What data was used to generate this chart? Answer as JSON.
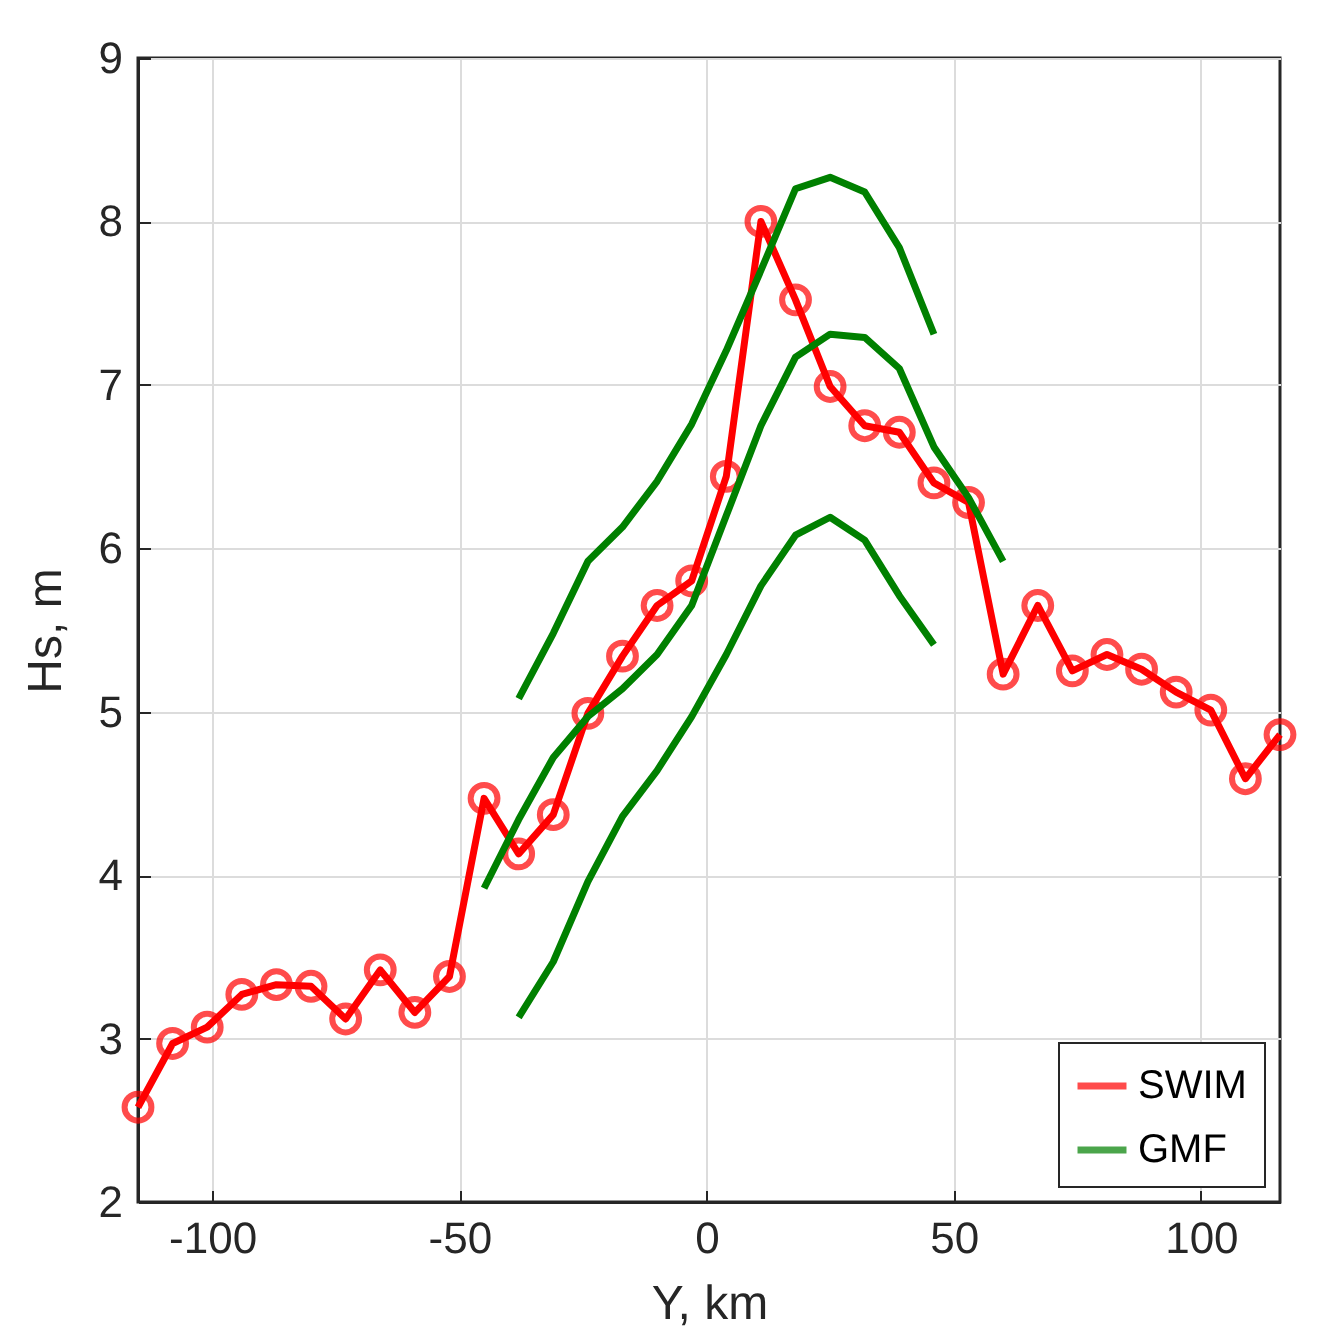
{
  "chart_data": {
    "type": "line",
    "xlabel": "Y, km",
    "ylabel": "Hs, m",
    "xlim": [
      -115,
      116
    ],
    "ylim": [
      2,
      9
    ],
    "xticks": [
      -100,
      -50,
      0,
      50,
      100
    ],
    "yticks": [
      2,
      3,
      4,
      5,
      6,
      7,
      8,
      9
    ],
    "grid": true,
    "legend": "bottom right",
    "line_style": "solid",
    "series": [
      {
        "name": "SWIM",
        "color": "#ff0000",
        "marker": "circle",
        "x": [
          -115,
          -108,
          -101,
          -94,
          -87,
          -80,
          -73,
          -66,
          -59,
          -52,
          -45,
          -38,
          -31,
          -24,
          -17,
          -10,
          -3,
          4,
          11,
          18,
          25,
          32,
          39,
          46,
          53,
          60,
          67,
          74,
          81,
          88,
          95,
          102,
          109,
          116
        ],
        "values": [
          2.58,
          2.97,
          3.07,
          3.27,
          3.33,
          3.32,
          3.12,
          3.42,
          3.16,
          3.38,
          4.47,
          4.13,
          4.37,
          4.99,
          5.34,
          5.65,
          5.8,
          6.44,
          8.0,
          7.52,
          6.99,
          6.75,
          6.71,
          6.4,
          6.28,
          5.23,
          5.65,
          5.25,
          5.35,
          5.26,
          5.12,
          5.01,
          4.59,
          4.86
        ]
      },
      {
        "name": "GMF",
        "color": "#008000",
        "marker": "none",
        "x": [
          -45,
          -38,
          -31,
          -24,
          -17,
          -10,
          -3,
          4,
          11,
          18,
          25,
          32,
          39,
          46,
          53,
          60
        ],
        "values": [
          3.92,
          4.34,
          4.72,
          4.97,
          5.14,
          5.35,
          5.65,
          6.2,
          6.75,
          7.17,
          7.31,
          7.29,
          7.1,
          6.62,
          6.31,
          5.92
        ]
      },
      {
        "color": "#008000",
        "marker": "none",
        "x": [
          -38,
          -31,
          -24,
          -17,
          -10,
          -3,
          4,
          11,
          18,
          25,
          32,
          39,
          46
        ],
        "values": [
          5.08,
          5.48,
          5.92,
          6.13,
          6.41,
          6.76,
          7.21,
          7.7,
          8.2,
          8.27,
          8.18,
          7.84,
          7.31
        ]
      },
      {
        "color": "#008000",
        "marker": "none",
        "x": [
          -38,
          -31,
          -24,
          -17,
          -10,
          -3,
          4,
          11,
          18,
          25,
          32,
          39,
          46
        ],
        "values": [
          3.13,
          3.47,
          3.96,
          4.36,
          4.64,
          4.97,
          5.35,
          5.77,
          6.08,
          6.19,
          6.05,
          5.71,
          5.41
        ]
      }
    ]
  }
}
